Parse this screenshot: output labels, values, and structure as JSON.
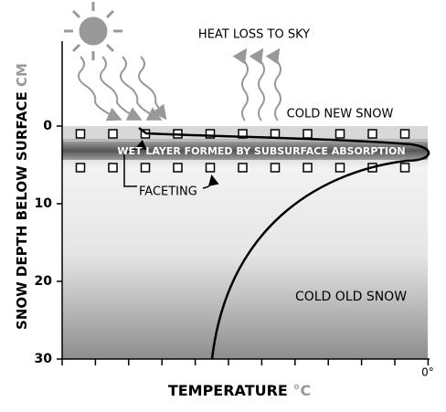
{
  "y_axis": {
    "title": "SNOW DEPTH BELOW SURFACE",
    "unit": "CM",
    "ticks": [
      0,
      10,
      20,
      30
    ]
  },
  "x_axis": {
    "title": "TEMPERATURE",
    "unit": "°C",
    "end_label": "0°"
  },
  "labels": {
    "heat_loss": "HEAT LOSS TO SKY",
    "new_snow": "COLD NEW SNOW",
    "wet_layer": "WET LAYER FORMED BY SUBSURFACE ABSORPTION",
    "faceting": "FACETING",
    "old_snow": "COLD OLD SNOW"
  }
}
